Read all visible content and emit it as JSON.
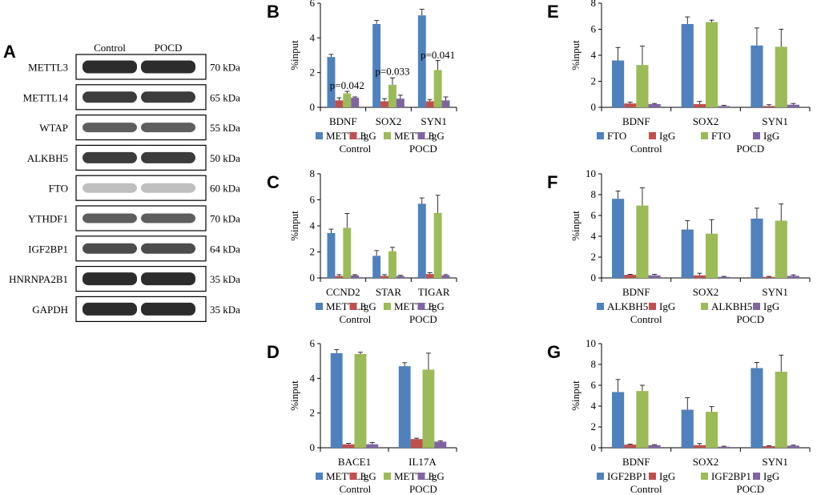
{
  "figure": {
    "panel_a_letter": "A"
  },
  "colors": {
    "blue": "#4F81BD",
    "red": "#C0504D",
    "green": "#9BBB59",
    "purple": "#8064A2"
  },
  "western_blot": {
    "column_labels": [
      "Control",
      "POCD"
    ],
    "bands": [
      {
        "protein": "METTL3",
        "size": "70 kDa"
      },
      {
        "protein": "METTL14",
        "size": "65 kDa"
      },
      {
        "protein": "WTAP",
        "size": "55 kDa"
      },
      {
        "protein": "ALKBH5",
        "size": "50 kDa"
      },
      {
        "protein": "FTO",
        "size": "60 kDa"
      },
      {
        "protein": "YTHDF1",
        "size": "70 kDa"
      },
      {
        "protein": "IGF2BP1",
        "size": "64 kDa"
      },
      {
        "protein": "HNRNPA2B1",
        "size": "35 kDa"
      },
      {
        "protein": "GAPDH",
        "size": "35 kDa"
      }
    ]
  },
  "chart_data": [
    {
      "panel": "B",
      "type": "bar",
      "ylabel": "%input",
      "ylim": [
        0,
        6
      ],
      "yticks": [
        0,
        2,
        4,
        6
      ],
      "categories": [
        "BDNF",
        "SOX2",
        "SYN1"
      ],
      "series": [
        {
          "name": "METTL3",
          "color": "blue",
          "values": [
            2.9,
            4.8,
            5.3
          ],
          "errors": [
            0.15,
            0.2,
            0.35
          ]
        },
        {
          "name": "IgG",
          "color": "red",
          "values": [
            0.4,
            0.35,
            0.35
          ],
          "errors": [
            0.15,
            0.15,
            0.1
          ]
        },
        {
          "name": "METTL3",
          "color": "green",
          "values": [
            0.8,
            1.3,
            2.15
          ],
          "errors": [
            0.12,
            0.4,
            0.55
          ]
        },
        {
          "name": "IgG",
          "color": "purple",
          "values": [
            0.55,
            0.5,
            0.4
          ],
          "errors": [
            0.05,
            0.2,
            0.2
          ]
        }
      ],
      "annotations": [
        {
          "category": 0,
          "text": "p=0.042",
          "y": 1.3
        },
        {
          "category": 1,
          "text": "p=0.033",
          "y": 2.1
        },
        {
          "category": 2,
          "text": "p=0.041",
          "y": 3.05
        }
      ],
      "legend_groups": [
        "Control",
        "POCD"
      ]
    },
    {
      "panel": "C",
      "type": "bar",
      "ylabel": "%input",
      "ylim": [
        0,
        8
      ],
      "yticks": [
        0,
        2,
        4,
        6,
        8
      ],
      "categories": [
        "CCND2",
        "STAR",
        "TIGAR"
      ],
      "series": [
        {
          "name": "METTL3",
          "color": "blue",
          "values": [
            3.45,
            1.7,
            5.7
          ],
          "errors": [
            0.3,
            0.4,
            0.45
          ]
        },
        {
          "name": "IgG",
          "color": "red",
          "values": [
            0.15,
            0.15,
            0.3
          ],
          "errors": [
            0.1,
            0.1,
            0.1
          ]
        },
        {
          "name": "METTL3",
          "color": "green",
          "values": [
            3.85,
            2.05,
            5.0
          ],
          "errors": [
            1.1,
            0.3,
            1.35
          ]
        },
        {
          "name": "IgG",
          "color": "purple",
          "values": [
            0.2,
            0.15,
            0.2
          ],
          "errors": [
            0.05,
            0.05,
            0.05
          ]
        }
      ],
      "legend_groups": [
        "Control",
        "POCD"
      ]
    },
    {
      "panel": "D",
      "type": "bar",
      "ylabel": "%input",
      "ylim": [
        0,
        6
      ],
      "yticks": [
        0,
        2,
        4,
        6
      ],
      "categories": [
        "BACE1",
        "IL17A"
      ],
      "series": [
        {
          "name": "METTL3",
          "color": "blue",
          "values": [
            5.45,
            4.7
          ],
          "errors": [
            0.2,
            0.2
          ]
        },
        {
          "name": "IgG",
          "color": "red",
          "values": [
            0.2,
            0.5
          ],
          "errors": [
            0.05,
            0.05
          ]
        },
        {
          "name": "METTL3",
          "color": "green",
          "values": [
            5.4,
            4.5
          ],
          "errors": [
            0.1,
            0.95
          ]
        },
        {
          "name": "IgG",
          "color": "purple",
          "values": [
            0.2,
            0.35
          ],
          "errors": [
            0.1,
            0.05
          ]
        }
      ],
      "legend_groups": [
        "Control",
        "POCD"
      ]
    },
    {
      "panel": "E",
      "type": "bar",
      "ylabel": "%input",
      "ylim": [
        0,
        8
      ],
      "yticks": [
        0,
        2,
        4,
        6,
        8
      ],
      "categories": [
        "BDNF",
        "SOX2",
        "SYN1"
      ],
      "series": [
        {
          "name": "FTO",
          "color": "blue",
          "values": [
            3.6,
            6.4,
            4.75
          ],
          "errors": [
            1.0,
            0.55,
            1.35
          ]
        },
        {
          "name": "IgG",
          "color": "red",
          "values": [
            0.3,
            0.25,
            0.1
          ],
          "errors": [
            0.1,
            0.2,
            0.1
          ]
        },
        {
          "name": "FTO",
          "color": "green",
          "values": [
            3.25,
            6.55,
            4.65
          ],
          "errors": [
            1.45,
            0.15,
            1.35
          ]
        },
        {
          "name": "IgG",
          "color": "purple",
          "values": [
            0.25,
            0.1,
            0.2
          ],
          "errors": [
            0.05,
            0.05,
            0.1
          ]
        }
      ],
      "legend_groups": [
        "Control",
        "POCD"
      ]
    },
    {
      "panel": "F",
      "type": "bar",
      "ylabel": "%input",
      "ylim": [
        0,
        10
      ],
      "yticks": [
        0,
        2,
        4,
        6,
        8,
        10
      ],
      "categories": [
        "BDNF",
        "SOX2",
        "SYN1"
      ],
      "series": [
        {
          "name": "ALKBH5",
          "color": "blue",
          "values": [
            7.6,
            4.65,
            5.7
          ],
          "errors": [
            0.75,
            0.85,
            1.0
          ]
        },
        {
          "name": "IgG",
          "color": "red",
          "values": [
            0.3,
            0.25,
            0.1
          ],
          "errors": [
            0.05,
            0.2,
            0.05
          ]
        },
        {
          "name": "ALKBH5",
          "color": "green",
          "values": [
            6.95,
            4.25,
            5.5
          ],
          "errors": [
            1.7,
            1.35,
            1.6
          ]
        },
        {
          "name": "IgG",
          "color": "purple",
          "values": [
            0.25,
            0.1,
            0.2
          ],
          "errors": [
            0.1,
            0.05,
            0.1
          ]
        }
      ],
      "legend_groups": [
        "Control",
        "POCD"
      ]
    },
    {
      "panel": "G",
      "type": "bar",
      "ylabel": "%input",
      "ylim": [
        0,
        10
      ],
      "yticks": [
        0,
        2,
        4,
        6,
        8,
        10
      ],
      "categories": [
        "BDNF",
        "SOX2",
        "SYN1"
      ],
      "series": [
        {
          "name": "IGF2BP1",
          "color": "blue",
          "values": [
            5.35,
            3.65,
            7.65
          ],
          "errors": [
            1.2,
            1.15,
            0.55
          ]
        },
        {
          "name": "IgG",
          "color": "red",
          "values": [
            0.3,
            0.25,
            0.15
          ],
          "errors": [
            0.05,
            0.15,
            0.05
          ]
        },
        {
          "name": "IGF2BP1",
          "color": "green",
          "values": [
            5.45,
            3.45,
            7.3
          ],
          "errors": [
            0.55,
            0.5,
            1.6
          ]
        },
        {
          "name": "IgG",
          "color": "purple",
          "values": [
            0.25,
            0.1,
            0.2
          ],
          "errors": [
            0.05,
            0.05,
            0.05
          ]
        }
      ],
      "legend_groups": [
        "Control",
        "POCD"
      ]
    }
  ]
}
